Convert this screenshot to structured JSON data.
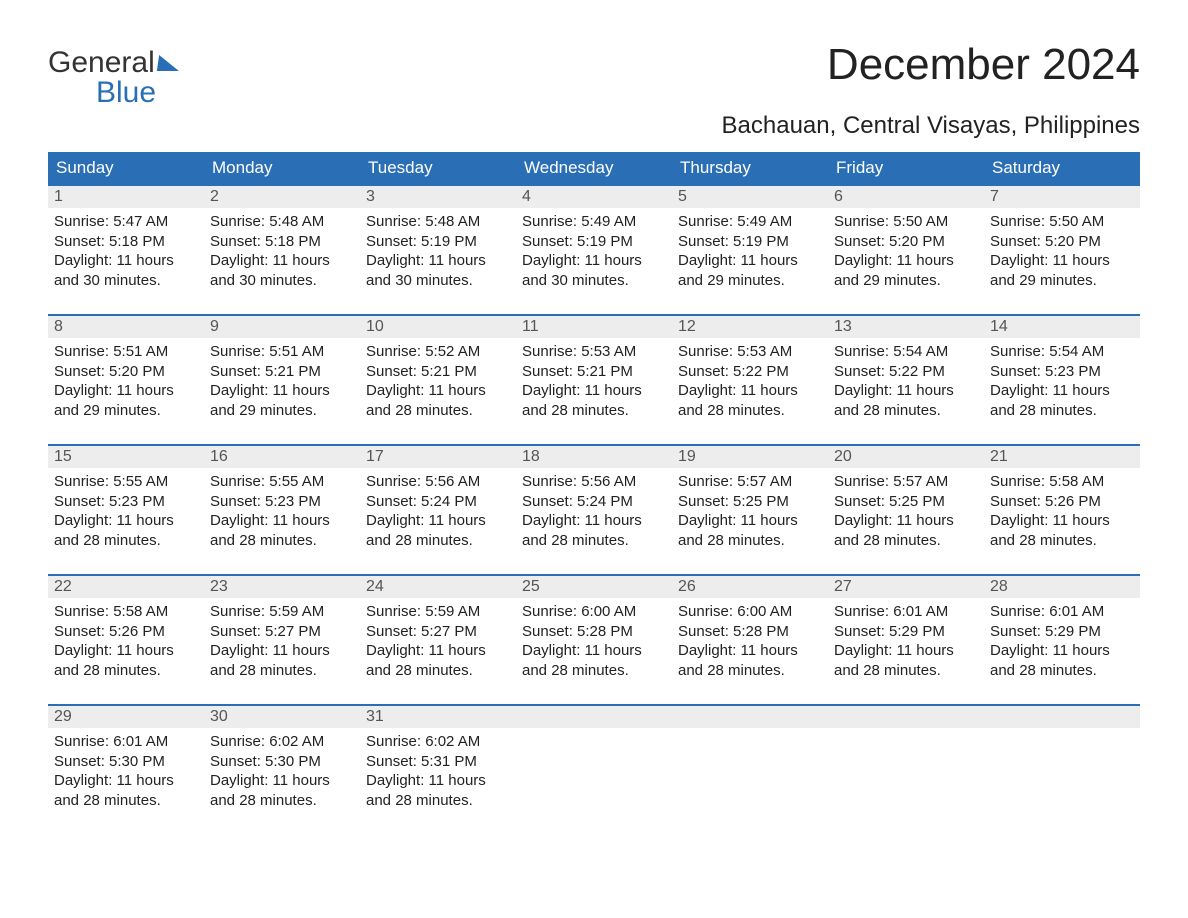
{
  "logo": {
    "word1": "General",
    "word2": "Blue"
  },
  "title": "December 2024",
  "subtitle": "Bachauan, Central Visayas, Philippines",
  "colors": {
    "header_bg": "#2a6fb5",
    "header_text": "#ffffff",
    "daynum_bg": "#ededed",
    "row_border": "#2a6fb5",
    "body_text": "#222222",
    "page_bg": "#ffffff"
  },
  "fontsize": {
    "title": 44,
    "subtitle": 24,
    "dayhead": 17,
    "daynum": 16,
    "body": 15
  },
  "weekdays": [
    "Sunday",
    "Monday",
    "Tuesday",
    "Wednesday",
    "Thursday",
    "Friday",
    "Saturday"
  ],
  "weeks": [
    [
      {
        "n": "1",
        "sunrise": "5:47 AM",
        "sunset": "5:18 PM",
        "daylight": "11 hours and 30 minutes."
      },
      {
        "n": "2",
        "sunrise": "5:48 AM",
        "sunset": "5:18 PM",
        "daylight": "11 hours and 30 minutes."
      },
      {
        "n": "3",
        "sunrise": "5:48 AM",
        "sunset": "5:19 PM",
        "daylight": "11 hours and 30 minutes."
      },
      {
        "n": "4",
        "sunrise": "5:49 AM",
        "sunset": "5:19 PM",
        "daylight": "11 hours and 30 minutes."
      },
      {
        "n": "5",
        "sunrise": "5:49 AM",
        "sunset": "5:19 PM",
        "daylight": "11 hours and 29 minutes."
      },
      {
        "n": "6",
        "sunrise": "5:50 AM",
        "sunset": "5:20 PM",
        "daylight": "11 hours and 29 minutes."
      },
      {
        "n": "7",
        "sunrise": "5:50 AM",
        "sunset": "5:20 PM",
        "daylight": "11 hours and 29 minutes."
      }
    ],
    [
      {
        "n": "8",
        "sunrise": "5:51 AM",
        "sunset": "5:20 PM",
        "daylight": "11 hours and 29 minutes."
      },
      {
        "n": "9",
        "sunrise": "5:51 AM",
        "sunset": "5:21 PM",
        "daylight": "11 hours and 29 minutes."
      },
      {
        "n": "10",
        "sunrise": "5:52 AM",
        "sunset": "5:21 PM",
        "daylight": "11 hours and 28 minutes."
      },
      {
        "n": "11",
        "sunrise": "5:53 AM",
        "sunset": "5:21 PM",
        "daylight": "11 hours and 28 minutes."
      },
      {
        "n": "12",
        "sunrise": "5:53 AM",
        "sunset": "5:22 PM",
        "daylight": "11 hours and 28 minutes."
      },
      {
        "n": "13",
        "sunrise": "5:54 AM",
        "sunset": "5:22 PM",
        "daylight": "11 hours and 28 minutes."
      },
      {
        "n": "14",
        "sunrise": "5:54 AM",
        "sunset": "5:23 PM",
        "daylight": "11 hours and 28 minutes."
      }
    ],
    [
      {
        "n": "15",
        "sunrise": "5:55 AM",
        "sunset": "5:23 PM",
        "daylight": "11 hours and 28 minutes."
      },
      {
        "n": "16",
        "sunrise": "5:55 AM",
        "sunset": "5:23 PM",
        "daylight": "11 hours and 28 minutes."
      },
      {
        "n": "17",
        "sunrise": "5:56 AM",
        "sunset": "5:24 PM",
        "daylight": "11 hours and 28 minutes."
      },
      {
        "n": "18",
        "sunrise": "5:56 AM",
        "sunset": "5:24 PM",
        "daylight": "11 hours and 28 minutes."
      },
      {
        "n": "19",
        "sunrise": "5:57 AM",
        "sunset": "5:25 PM",
        "daylight": "11 hours and 28 minutes."
      },
      {
        "n": "20",
        "sunrise": "5:57 AM",
        "sunset": "5:25 PM",
        "daylight": "11 hours and 28 minutes."
      },
      {
        "n": "21",
        "sunrise": "5:58 AM",
        "sunset": "5:26 PM",
        "daylight": "11 hours and 28 minutes."
      }
    ],
    [
      {
        "n": "22",
        "sunrise": "5:58 AM",
        "sunset": "5:26 PM",
        "daylight": "11 hours and 28 minutes."
      },
      {
        "n": "23",
        "sunrise": "5:59 AM",
        "sunset": "5:27 PM",
        "daylight": "11 hours and 28 minutes."
      },
      {
        "n": "24",
        "sunrise": "5:59 AM",
        "sunset": "5:27 PM",
        "daylight": "11 hours and 28 minutes."
      },
      {
        "n": "25",
        "sunrise": "6:00 AM",
        "sunset": "5:28 PM",
        "daylight": "11 hours and 28 minutes."
      },
      {
        "n": "26",
        "sunrise": "6:00 AM",
        "sunset": "5:28 PM",
        "daylight": "11 hours and 28 minutes."
      },
      {
        "n": "27",
        "sunrise": "6:01 AM",
        "sunset": "5:29 PM",
        "daylight": "11 hours and 28 minutes."
      },
      {
        "n": "28",
        "sunrise": "6:01 AM",
        "sunset": "5:29 PM",
        "daylight": "11 hours and 28 minutes."
      }
    ],
    [
      {
        "n": "29",
        "sunrise": "6:01 AM",
        "sunset": "5:30 PM",
        "daylight": "11 hours and 28 minutes."
      },
      {
        "n": "30",
        "sunrise": "6:02 AM",
        "sunset": "5:30 PM",
        "daylight": "11 hours and 28 minutes."
      },
      {
        "n": "31",
        "sunrise": "6:02 AM",
        "sunset": "5:31 PM",
        "daylight": "11 hours and 28 minutes."
      },
      null,
      null,
      null,
      null
    ]
  ],
  "labels": {
    "sunrise": "Sunrise: ",
    "sunset": "Sunset: ",
    "daylight": "Daylight: "
  }
}
